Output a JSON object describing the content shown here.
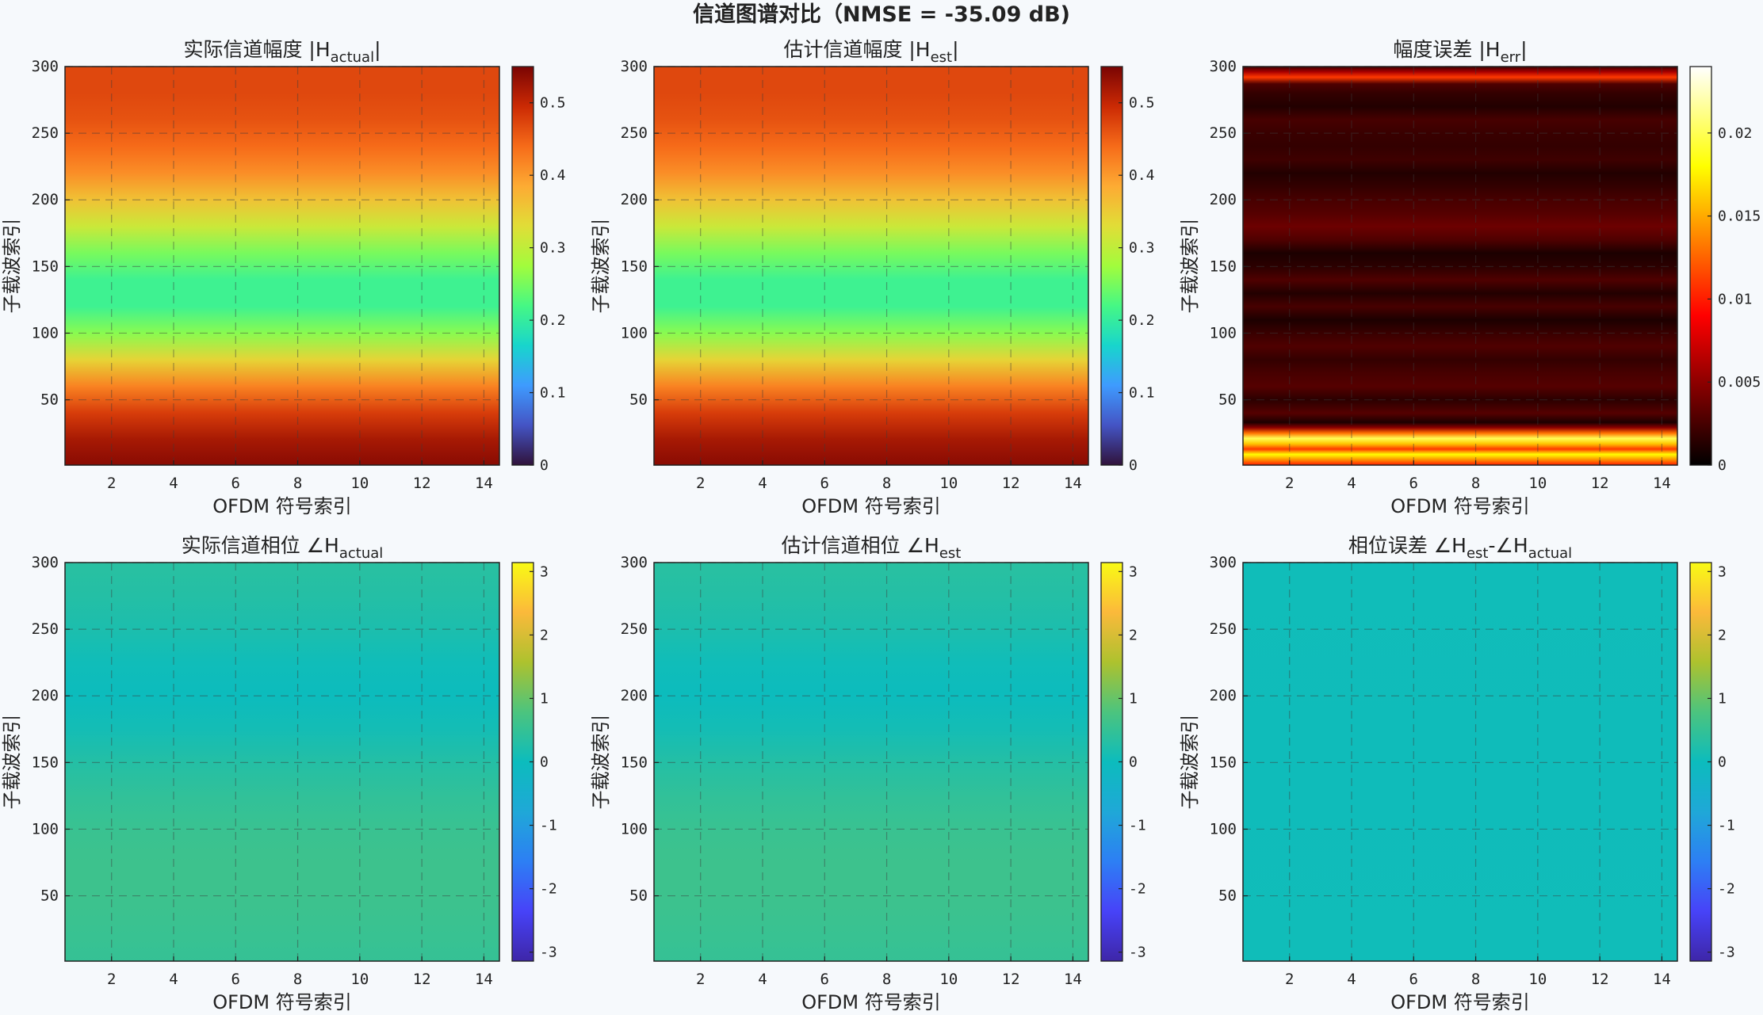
{
  "figure": {
    "title": "信道图谱对比（NMSE = -35.09 dB)",
    "nmse_db": -35.09
  },
  "colors": {
    "background": "#f6f9fc",
    "axis": "#222222",
    "grid": "#3c3c3c"
  },
  "chart_data": [
    {
      "id": "mag-actual",
      "type": "heatmap",
      "title": {
        "base": "实际信道幅度  |H",
        "sub": "actual",
        "tail": "|"
      },
      "xlabel": "OFDM 符号索引",
      "ylabel": "子载波索引",
      "xlim": [
        0.5,
        14.5
      ],
      "ylim": [
        1,
        300
      ],
      "xticks": [
        2,
        4,
        6,
        8,
        10,
        12,
        14
      ],
      "yticks": [
        50,
        100,
        150,
        200,
        250,
        300
      ],
      "colormap": "turbo",
      "clim": [
        0,
        0.55
      ],
      "cbar_ticks": [
        0,
        0.1,
        0.2,
        0.3,
        0.4,
        0.5
      ],
      "cbar_tick_labels": [
        "0",
        "0.1",
        "0.2",
        "0.3",
        "0.4",
        "0.5"
      ],
      "profile_y": [
        1,
        20,
        40,
        60,
        80,
        100,
        120,
        140,
        160,
        180,
        200,
        220,
        240,
        260,
        280,
        300
      ],
      "profile_values": [
        0.54,
        0.52,
        0.48,
        0.42,
        0.34,
        0.26,
        0.21,
        0.21,
        0.25,
        0.31,
        0.36,
        0.41,
        0.44,
        0.46,
        0.47,
        0.47
      ]
    },
    {
      "id": "mag-est",
      "type": "heatmap",
      "title": {
        "base": "估计信道幅度  |H",
        "sub": "est",
        "tail": "|"
      },
      "xlabel": "OFDM 符号索引",
      "ylabel": "子载波索引",
      "xlim": [
        0.5,
        14.5
      ],
      "ylim": [
        1,
        300
      ],
      "xticks": [
        2,
        4,
        6,
        8,
        10,
        12,
        14
      ],
      "yticks": [
        50,
        100,
        150,
        200,
        250,
        300
      ],
      "colormap": "turbo",
      "clim": [
        0,
        0.55
      ],
      "cbar_ticks": [
        0,
        0.1,
        0.2,
        0.3,
        0.4,
        0.5
      ],
      "cbar_tick_labels": [
        "0",
        "0.1",
        "0.2",
        "0.3",
        "0.4",
        "0.5"
      ],
      "profile_y": [
        1,
        20,
        40,
        60,
        80,
        100,
        120,
        140,
        160,
        180,
        200,
        220,
        240,
        260,
        280,
        300
      ],
      "profile_values": [
        0.54,
        0.52,
        0.48,
        0.42,
        0.34,
        0.26,
        0.21,
        0.21,
        0.25,
        0.31,
        0.36,
        0.41,
        0.44,
        0.46,
        0.47,
        0.47
      ]
    },
    {
      "id": "mag-err",
      "type": "heatmap",
      "title": {
        "base": "幅度误差  |H",
        "sub": "err",
        "tail": "|"
      },
      "xlabel": "OFDM 符号索引",
      "ylabel": "子载波索引",
      "xlim": [
        0.5,
        14.5
      ],
      "ylim": [
        1,
        300
      ],
      "xticks": [
        2,
        4,
        6,
        8,
        10,
        12,
        14
      ],
      "yticks": [
        50,
        100,
        150,
        200,
        250,
        300
      ],
      "colormap": "hot",
      "clim": [
        0,
        0.024
      ],
      "cbar_ticks": [
        0,
        0.005,
        0.01,
        0.015,
        0.02
      ],
      "cbar_tick_labels": [
        "0",
        "0.005",
        "0.01",
        "0.015",
        "0.02"
      ],
      "profile_y": [
        1,
        5,
        9,
        13,
        17,
        21,
        25,
        29,
        33,
        40,
        50,
        60,
        70,
        80,
        90,
        100,
        110,
        120,
        130,
        140,
        150,
        160,
        170,
        180,
        190,
        200,
        210,
        220,
        230,
        240,
        250,
        260,
        270,
        280,
        287,
        292,
        296,
        300
      ],
      "profile_values": [
        0.01,
        0.014,
        0.018,
        0.011,
        0.016,
        0.02,
        0.013,
        0.005,
        0.001,
        0.003,
        0.0015,
        0.003,
        0.0025,
        0.0018,
        0.0028,
        0.002,
        0.001,
        0.0025,
        0.0012,
        0.0028,
        0.0015,
        0.001,
        0.0028,
        0.0038,
        0.003,
        0.0025,
        0.0018,
        0.0012,
        0.0022,
        0.0018,
        0.002,
        0.0025,
        0.0012,
        0.0018,
        0.0028,
        0.011,
        0.006,
        0.002
      ]
    },
    {
      "id": "phase-actual",
      "type": "heatmap",
      "title": {
        "base": "实际信道相位  ∠H",
        "sub": "actual",
        "tail": ""
      },
      "xlabel": "OFDM 符号索引",
      "ylabel": "子载波索引",
      "xlim": [
        0.5,
        14.5
      ],
      "ylim": [
        1,
        300
      ],
      "xticks": [
        2,
        4,
        6,
        8,
        10,
        12,
        14
      ],
      "yticks": [
        50,
        100,
        150,
        200,
        250,
        300
      ],
      "colormap": "parula",
      "clim": [
        -3.1416,
        3.1416
      ],
      "cbar_ticks": [
        -3,
        -2,
        -1,
        0,
        1,
        2,
        3
      ],
      "cbar_tick_labels": [
        "-3",
        "-2",
        "-1",
        "0",
        "1",
        "2",
        "3"
      ],
      "profile_y": [
        1,
        25,
        50,
        75,
        100,
        125,
        150,
        175,
        200,
        225,
        250,
        275,
        300
      ],
      "profile_values": [
        0.5,
        0.55,
        0.6,
        0.6,
        0.55,
        0.45,
        0.3,
        0.1,
        0.0,
        0.05,
        0.2,
        0.3,
        0.35
      ]
    },
    {
      "id": "phase-est",
      "type": "heatmap",
      "title": {
        "base": "估计信道相位  ∠H",
        "sub": "est",
        "tail": ""
      },
      "xlabel": "OFDM 符号索引",
      "ylabel": "子载波索引",
      "xlim": [
        0.5,
        14.5
      ],
      "ylim": [
        1,
        300
      ],
      "xticks": [
        2,
        4,
        6,
        8,
        10,
        12,
        14
      ],
      "yticks": [
        50,
        100,
        150,
        200,
        250,
        300
      ],
      "colormap": "parula",
      "clim": [
        -3.1416,
        3.1416
      ],
      "cbar_ticks": [
        -3,
        -2,
        -1,
        0,
        1,
        2,
        3
      ],
      "cbar_tick_labels": [
        "-3",
        "-2",
        "-1",
        "0",
        "1",
        "2",
        "3"
      ],
      "profile_y": [
        1,
        25,
        50,
        75,
        100,
        125,
        150,
        175,
        200,
        225,
        250,
        275,
        300
      ],
      "profile_values": [
        0.5,
        0.55,
        0.6,
        0.6,
        0.55,
        0.45,
        0.3,
        0.1,
        0.0,
        0.05,
        0.2,
        0.3,
        0.35
      ]
    },
    {
      "id": "phase-err",
      "type": "heatmap",
      "title": {
        "base": "相位误差  ∠H",
        "sub": "est",
        "tail": "-∠H",
        "sub2": "actual"
      },
      "xlabel": "OFDM 符号索引",
      "ylabel": "子载波索引",
      "xlim": [
        0.5,
        14.5
      ],
      "ylim": [
        1,
        300
      ],
      "xticks": [
        2,
        4,
        6,
        8,
        10,
        12,
        14
      ],
      "yticks": [
        50,
        100,
        150,
        200,
        250,
        300
      ],
      "colormap": "parula",
      "clim": [
        -3.1416,
        3.1416
      ],
      "cbar_ticks": [
        -3,
        -2,
        -1,
        0,
        1,
        2,
        3
      ],
      "cbar_tick_labels": [
        "-3",
        "-2",
        "-1",
        "0",
        "1",
        "2",
        "3"
      ],
      "profile_y": [
        1,
        150,
        300
      ],
      "profile_values": [
        0.05,
        0.04,
        0.05
      ]
    }
  ]
}
